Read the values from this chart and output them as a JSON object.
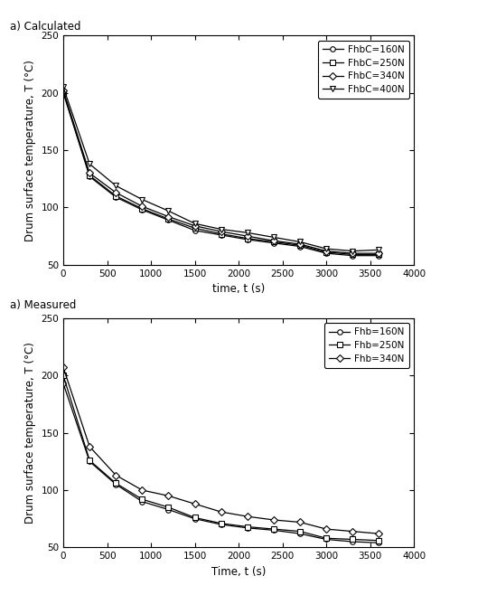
{
  "top_title": "a) Calculated",
  "bottom_title": "a) Measured",
  "xlabel_top": "time, t (s)",
  "xlabel_bottom": "Time, t (s)",
  "ylabel": "Drum surface temperature, T (°C)",
  "xlim": [
    0,
    4000
  ],
  "ylim": [
    50,
    250
  ],
  "xticks": [
    0,
    500,
    1000,
    1500,
    2000,
    2500,
    3000,
    3500,
    4000
  ],
  "yticks": [
    50,
    100,
    150,
    200,
    250
  ],
  "calc_time": [
    0,
    300,
    600,
    900,
    1200,
    1500,
    1800,
    2100,
    2400,
    2700,
    3000,
    3300,
    3600
  ],
  "calc_160": [
    200,
    127,
    109,
    98,
    89,
    80,
    76,
    72,
    69,
    66,
    60,
    58,
    58
  ],
  "calc_250": [
    201,
    128,
    110,
    99,
    90,
    82,
    77,
    73,
    70,
    67,
    61,
    59,
    59
  ],
  "calc_340": [
    202,
    130,
    113,
    101,
    92,
    84,
    79,
    75,
    71,
    68,
    62,
    60,
    60
  ],
  "calc_400": [
    205,
    138,
    119,
    107,
    97,
    86,
    81,
    78,
    74,
    70,
    64,
    62,
    63
  ],
  "meas_time": [
    0,
    300,
    600,
    900,
    1200,
    1500,
    1800,
    2100,
    2400,
    2700,
    3000,
    3300,
    3600
  ],
  "meas_160": [
    193,
    125,
    105,
    90,
    83,
    75,
    70,
    67,
    65,
    62,
    57,
    55,
    54
  ],
  "meas_250": [
    200,
    126,
    106,
    92,
    85,
    76,
    71,
    68,
    66,
    64,
    58,
    57,
    56
  ],
  "meas_340": [
    207,
    138,
    113,
    100,
    95,
    88,
    81,
    77,
    74,
    72,
    66,
    64,
    62
  ],
  "line_color": "#000000",
  "legend_fontsize": 7.5,
  "title_fontsize": 8.5,
  "tick_fontsize": 7.5,
  "label_fontsize": 8.5
}
